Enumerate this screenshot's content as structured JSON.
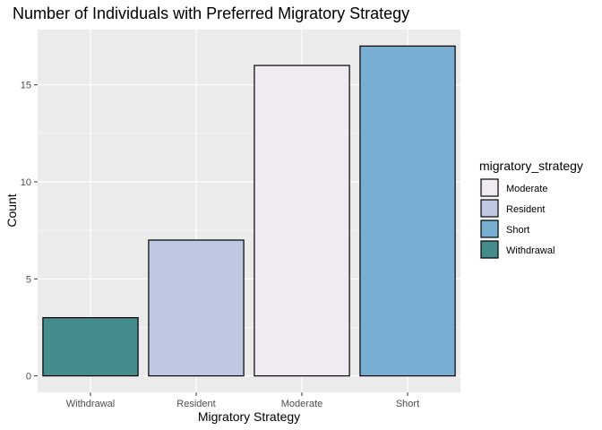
{
  "chart_data": {
    "type": "bar",
    "title": "Number of Individuals with Preferred Migratory Strategy",
    "xlabel": "Migratory Strategy",
    "ylabel": "Count",
    "categories": [
      "Withdrawal",
      "Resident",
      "Moderate",
      "Short"
    ],
    "values": [
      3,
      7,
      16,
      17
    ],
    "bar_colors": [
      "#458c8c",
      "#bec8e2",
      "#f0eaf2",
      "#78aed2"
    ],
    "ylim": [
      -0.85,
      17.85
    ],
    "yticks": [
      0,
      5,
      10,
      15
    ],
    "grid": true,
    "panel_background": "#ebebeb",
    "legend": {
      "title": "migratory_strategy",
      "placement": "right",
      "entries": [
        {
          "label": "Moderate",
          "color": "#f0eaf2"
        },
        {
          "label": "Resident",
          "color": "#bec8e2"
        },
        {
          "label": "Short",
          "color": "#78aed2"
        },
        {
          "label": "Withdrawal",
          "color": "#458c8c"
        }
      ]
    }
  }
}
